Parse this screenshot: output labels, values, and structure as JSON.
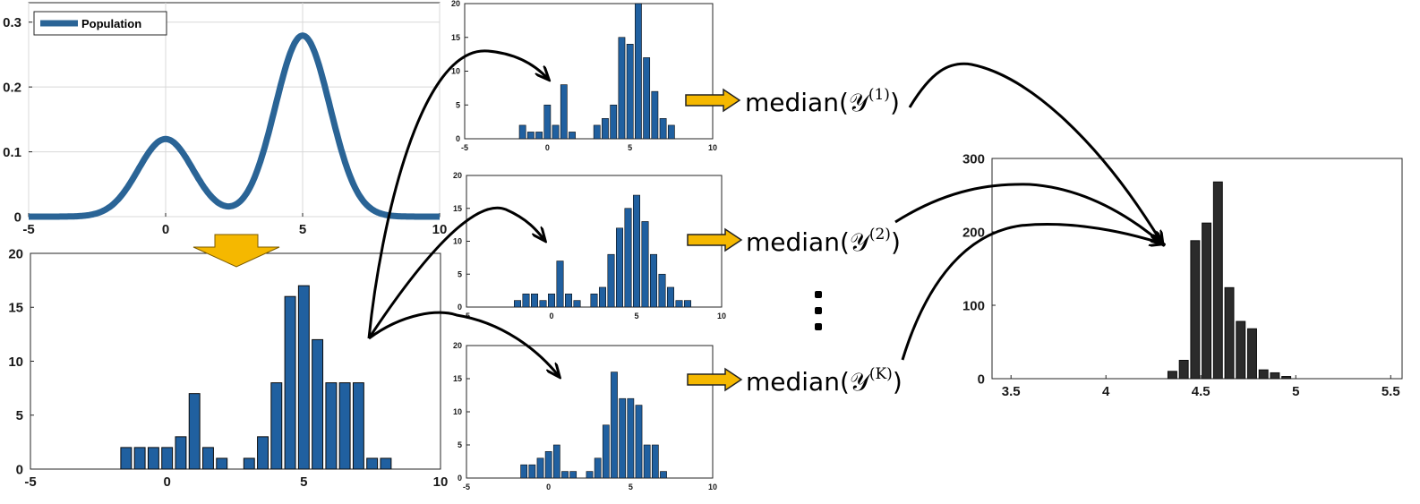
{
  "colors": {
    "bar_blue": "#2060a0",
    "line_blue": "#2a6496",
    "bar_dark": "#2b2b2b",
    "arrow_gold": "#f5b800",
    "grid": "#d8d8d8"
  },
  "chart_data": [
    {
      "type": "line",
      "legend": "Population",
      "legend_position": "top-left",
      "xlim": [
        -5,
        10
      ],
      "ylim": [
        0,
        0.33
      ],
      "xticks": [
        "-5",
        "0",
        "5",
        "10"
      ],
      "yticks": [
        "0",
        "0.1",
        "0.2",
        "0.3"
      ],
      "grid": true,
      "series": [
        {
          "name": "Population",
          "components": [
            {
              "weight": 0.3,
              "mean": 0,
              "sd": 1
            },
            {
              "weight": 0.7,
              "mean": 5,
              "sd": 1
            }
          ]
        }
      ]
    },
    {
      "type": "bar",
      "xlim": [
        -5,
        10
      ],
      "ylim": [
        0,
        20
      ],
      "xticks": [
        "-5",
        "0",
        "5",
        "10"
      ],
      "yticks": [
        "0",
        "5",
        "10",
        "15",
        "20"
      ],
      "x": [
        -1.5,
        -1.0,
        -0.5,
        0.0,
        0.5,
        1.0,
        1.5,
        2.0,
        2.5,
        3.0,
        3.5,
        4.0,
        4.5,
        5.0,
        5.5,
        6.0,
        6.5,
        7.0,
        7.5,
        8.0
      ],
      "values": [
        2,
        2,
        2,
        2,
        3,
        7,
        2,
        1,
        0,
        1,
        3,
        8,
        16,
        17,
        12,
        8,
        8,
        8,
        1,
        1
      ]
    },
    {
      "type": "bar",
      "xlim": [
        -5,
        10
      ],
      "ylim": [
        0,
        20
      ],
      "xticks": [
        "-5",
        "0",
        "5",
        "10"
      ],
      "yticks": [
        "0",
        "5",
        "10",
        "15",
        "20"
      ],
      "x": [
        -1.5,
        -1.0,
        -0.5,
        0.0,
        0.5,
        1.0,
        1.5,
        2.0,
        2.5,
        3.0,
        3.5,
        4.0,
        4.5,
        5.0,
        5.5,
        6.0,
        6.5,
        7.0,
        7.5
      ],
      "values": [
        2,
        1,
        1,
        5,
        2,
        8,
        1,
        0,
        0,
        2,
        3,
        5,
        15,
        14,
        20,
        12,
        7,
        3,
        2
      ]
    },
    {
      "type": "bar",
      "xlim": [
        -5,
        10
      ],
      "ylim": [
        0,
        20
      ],
      "xticks": [
        "-5",
        "0",
        "5",
        "10"
      ],
      "yticks": [
        "0",
        "5",
        "10",
        "15",
        "20"
      ],
      "x": [
        -2.0,
        -1.5,
        -1.0,
        -0.5,
        0.0,
        0.5,
        1.0,
        1.5,
        2.0,
        2.5,
        3.0,
        3.5,
        4.0,
        4.5,
        5.0,
        5.5,
        6.0,
        6.5,
        7.0,
        7.5,
        8.0
      ],
      "values": [
        1,
        2,
        2,
        1,
        2,
        7,
        2,
        1,
        0,
        2,
        3,
        8,
        12,
        15,
        17,
        13,
        8,
        5,
        3,
        1,
        1
      ]
    },
    {
      "type": "bar",
      "xlim": [
        -5,
        10
      ],
      "ylim": [
        0,
        20
      ],
      "xticks": [
        "-5",
        "0",
        "5",
        "10"
      ],
      "yticks": [
        "0",
        "5",
        "10",
        "15",
        "20"
      ],
      "x": [
        -1.5,
        -1.0,
        -0.5,
        0.0,
        0.5,
        1.0,
        1.5,
        2.0,
        2.5,
        3.0,
        3.5,
        4.0,
        4.5,
        5.0,
        5.5,
        6.0,
        6.5,
        7.0
      ],
      "values": [
        2,
        2,
        3,
        4,
        5,
        1,
        1,
        0,
        1,
        3,
        8,
        16,
        12,
        12,
        11,
        5,
        5,
        1
      ]
    },
    {
      "type": "bar",
      "xlim": [
        3.4,
        5.56
      ],
      "ylim": [
        0,
        300
      ],
      "xticks": [
        "3.5",
        "4",
        "4.5",
        "5",
        "5.5"
      ],
      "yticks": [
        "0",
        "100",
        "200",
        "300"
      ],
      "x": [
        4.35,
        4.41,
        4.47,
        4.53,
        4.59,
        4.65,
        4.71,
        4.77,
        4.83,
        4.89,
        4.95
      ],
      "values": [
        10,
        25,
        188,
        212,
        268,
        124,
        78,
        68,
        12,
        8,
        3
      ]
    }
  ],
  "labels": {
    "median_1": "median(𝒴",
    "sup_1": "(1)",
    "median_2": "median(𝒴",
    "sup_2": "(2)",
    "median_K": "median(𝒴",
    "sup_K": "(K)",
    "close_paren": ")"
  }
}
